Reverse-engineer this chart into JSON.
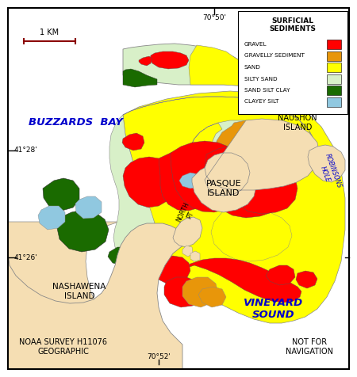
{
  "legend_title": "SURFICIAL\nSEDIMENTS",
  "legend_items": [
    {
      "label": "GRAVEL",
      "color": "#FF0000"
    },
    {
      "label": "GRAVELLY SEDIMENT",
      "color": "#E8960A"
    },
    {
      "label": "SAND",
      "color": "#FFFF00"
    },
    {
      "label": "SILTY SAND",
      "color": "#D8F0C8"
    },
    {
      "label": "SAND SILT CLAY",
      "color": "#1A6B00"
    },
    {
      "label": "CLAYEY SILT",
      "color": "#90C8E0"
    }
  ],
  "scale_bar_label": "1 KM",
  "lat_labels": [
    "41°28'",
    "41°26'"
  ],
  "lon_labels": [
    "70°50'",
    "70°52'"
  ],
  "background_color": "#FFFFFF",
  "land_color": "#F5DEB3"
}
